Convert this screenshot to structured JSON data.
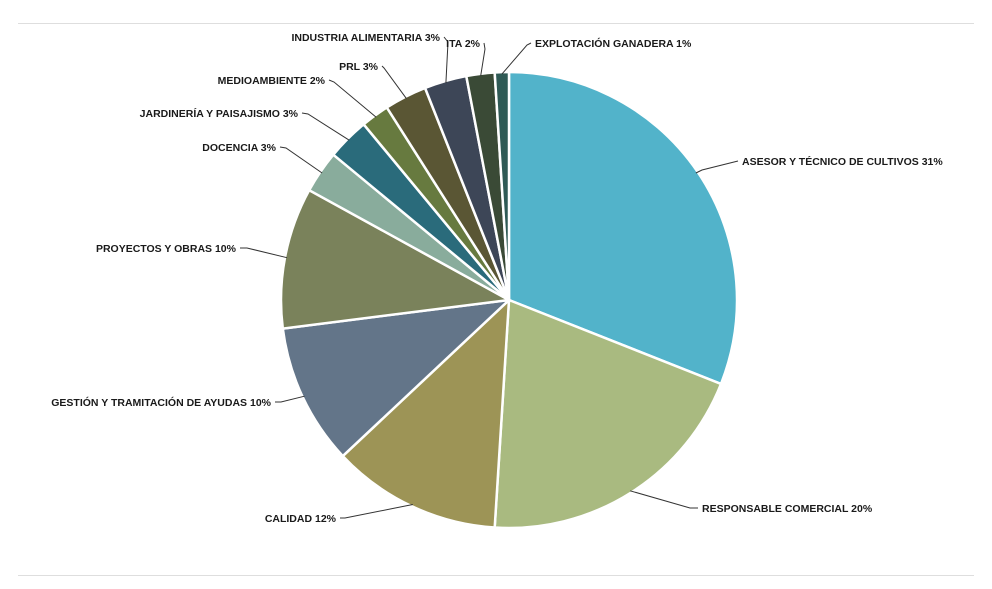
{
  "chart_data": {
    "type": "pie",
    "title": "",
    "slices": [
      {
        "label": "ASESOR Y TÉCNICO DE CULTIVOS 31%",
        "value": 31,
        "color": "#52b3ca"
      },
      {
        "label": "RESPONSABLE COMERCIAL 20%",
        "value": 20,
        "color": "#a9ba80"
      },
      {
        "label": "CALIDAD 12%",
        "value": 12,
        "color": "#9d9456"
      },
      {
        "label": "GESTIÓN Y TRAMITACIÓN DE AYUDAS 10%",
        "value": 10,
        "color": "#637589"
      },
      {
        "label": "PROYECTOS Y OBRAS 10%",
        "value": 10,
        "color": "#7a825b"
      },
      {
        "label": "DOCENCIA 3%",
        "value": 3,
        "color": "#89ac9c"
      },
      {
        "label": "JARDINERÍA Y PAISAJISMO 3%",
        "value": 3,
        "color": "#2a6b7b"
      },
      {
        "label": "MEDIOAMBIENTE 2%",
        "value": 2,
        "color": "#677a3f"
      },
      {
        "label": "PRL 3%",
        "value": 3,
        "color": "#5a5634"
      },
      {
        "label": "INDUSTRIA ALIMENTARIA 3%",
        "value": 3,
        "color": "#3d4657"
      },
      {
        "label": "ITA 2%",
        "value": 2,
        "color": "#3a4a36"
      },
      {
        "label": "EXPLOTACIÓN GANADERA 1%",
        "value": 1,
        "color": "#2f5a55"
      }
    ]
  }
}
